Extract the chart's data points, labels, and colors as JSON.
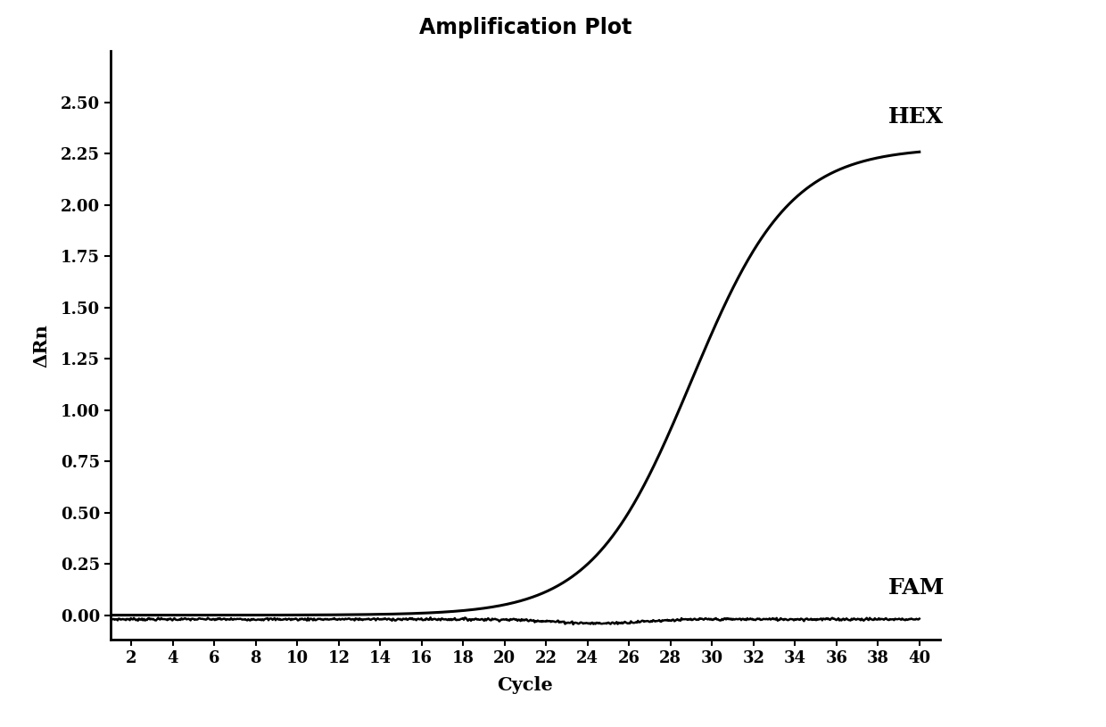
{
  "title": "Amplification Plot",
  "xlabel": "Cycle",
  "ylabel": "ΔRn",
  "xlim": [
    1,
    41
  ],
  "ylim": [
    -0.12,
    2.75
  ],
  "xticks": [
    2,
    4,
    6,
    8,
    10,
    12,
    14,
    16,
    18,
    20,
    22,
    24,
    26,
    28,
    30,
    32,
    34,
    36,
    38,
    40
  ],
  "yticks": [
    0.0,
    0.25,
    0.5,
    0.75,
    1.0,
    1.25,
    1.5,
    1.75,
    2.0,
    2.25,
    2.5
  ],
  "hex_label": "HEX",
  "fam_label": "FAM",
  "line_color": "#000000",
  "background_color": "#ffffff",
  "title_fontsize": 17,
  "axis_label_fontsize": 15,
  "tick_fontsize": 13,
  "annotation_fontsize": 18,
  "hex_midpoint": 29.0,
  "hex_steepness": 0.42,
  "hex_max": 2.28,
  "fam_baseline": -0.02
}
